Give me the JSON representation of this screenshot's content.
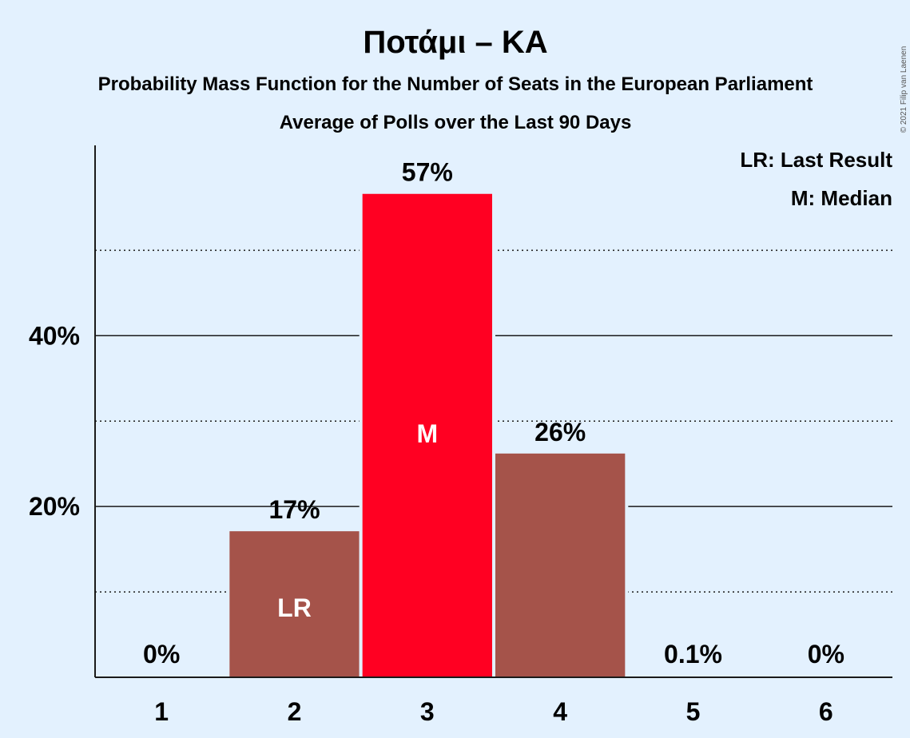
{
  "chart_data": {
    "type": "bar",
    "title": "Ποτάμι – KA",
    "subtitle": "Probability Mass Function for the Number of Seats in the European Parliament",
    "subtitle2": "Average of Polls over the Last 90 Days",
    "categories": [
      "1",
      "2",
      "3",
      "4",
      "5",
      "6"
    ],
    "values": [
      0,
      17.1,
      56.6,
      26.2,
      0.1,
      0
    ],
    "value_labels": [
      "0%",
      "17%",
      "57%",
      "26%",
      "0.1%",
      "0%"
    ],
    "bar_markers": [
      "",
      "LR",
      "M",
      "",
      "",
      ""
    ],
    "highlight_index": 2,
    "ylim": [
      0,
      62
    ],
    "yticks": [
      20,
      40
    ],
    "ytick_labels": [
      "20%",
      "40%"
    ],
    "minor_gridlines": [
      10,
      30,
      50
    ],
    "legend": [
      "LR: Last Result",
      "M: Median"
    ],
    "legend_position": "top-right",
    "copyright": "© 2021 Filip van Laenen",
    "colors": {
      "background": "#e3f1fe",
      "bar": "#a5534a",
      "highlight": "#ff0022",
      "text": "#1a1a1a"
    }
  }
}
